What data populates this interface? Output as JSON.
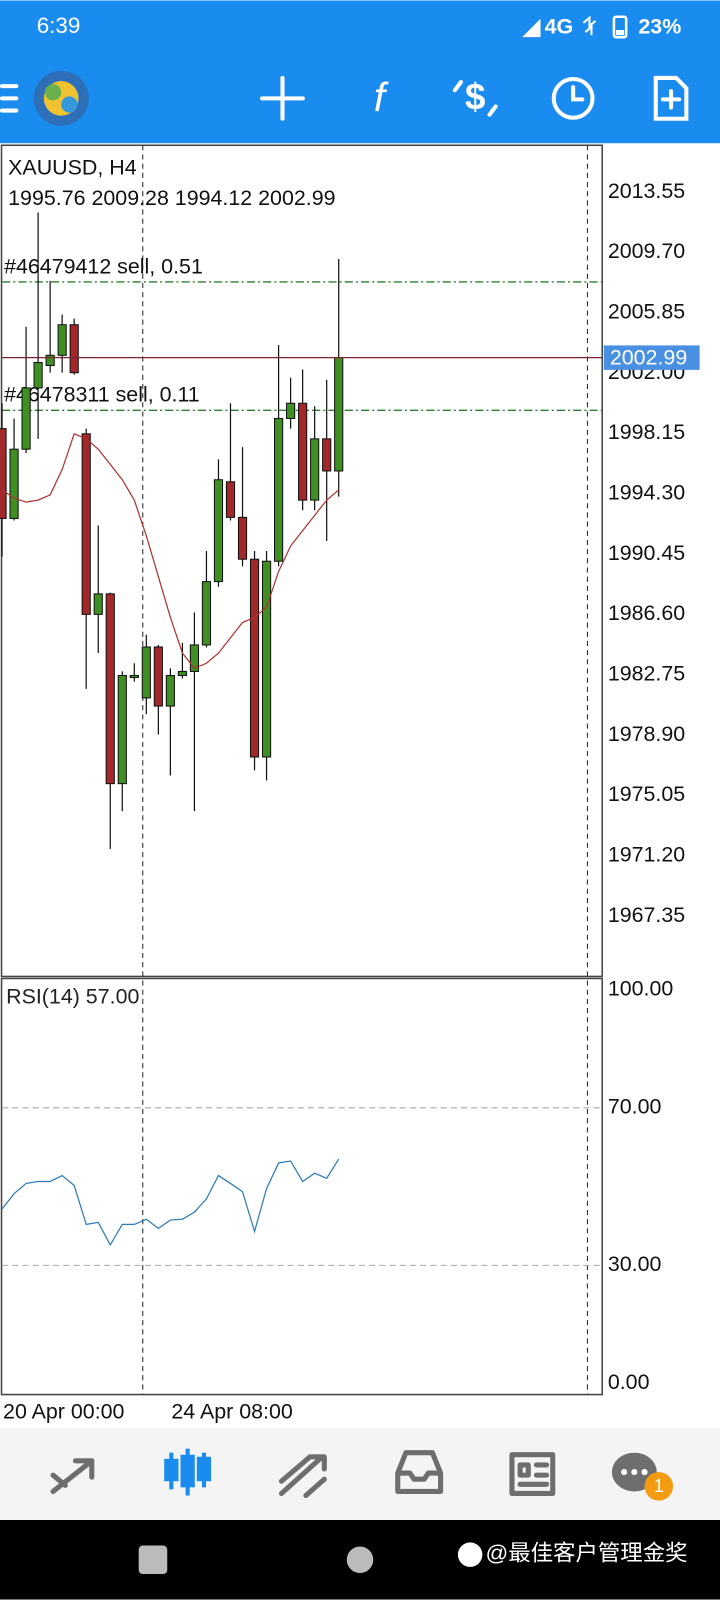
{
  "status_bar": {
    "time": "6:39",
    "network": "4G",
    "battery": "23%"
  },
  "chart_data": [
    {
      "type": "candlestick",
      "title": "XAUUSD, H4",
      "subtitle": "1995.76 2009.28 1994.12 2002.99",
      "categories": [
        "20 Apr 00:00",
        null,
        null,
        null,
        null,
        null,
        null,
        null,
        null,
        null,
        null,
        null,
        null,
        null,
        "24 Apr 08:00",
        null,
        null,
        null,
        null,
        null,
        null,
        null,
        null,
        null,
        null,
        null,
        null,
        null,
        null
      ],
      "open": [
        1998.46,
        1992.73,
        1997.15,
        2001.06,
        2002.49,
        2003.14,
        2005.09,
        1998.13,
        1986.61,
        1987.92,
        1975.81,
        1982.58,
        1981.28,
        1984.53,
        1980.76,
        1982.71,
        1982.97,
        1984.66,
        1988.7,
        1995.07,
        1992.8,
        1990.13,
        1977.51,
        1990.0,
        1999.11,
        2000.08,
        1993.9,
        1997.81,
        1995.76
      ],
      "high": [
        2000.08,
        1999.11,
        2004.96,
        2012.25,
        2007.89,
        2005.74,
        2005.48,
        1998.46,
        1992.28,
        1988.0,
        1982.97,
        1983.49,
        1985.31,
        1984.66,
        1983.17,
        1984.79,
        1986.74,
        1990.65,
        1996.5,
        2000.08,
        1997.28,
        1990.65,
        1990.65,
        2003.79,
        2001.71,
        2002.23,
        1999.89,
        2001.58,
        2009.28
      ],
      "low": [
        1990.3,
        1992.6,
        1996.9,
        1997.81,
        2002.03,
        2002.03,
        2001.9,
        1981.86,
        1984.14,
        1971.65,
        1974.06,
        1982.32,
        1980.24,
        1978.94,
        1976.33,
        1982.52,
        1974.06,
        1984.5,
        1988.37,
        1992.6,
        1989.67,
        1976.66,
        1976.01,
        1989.67,
        1998.46,
        1993.25,
        1993.25,
        1991.3,
        1994.12
      ],
      "close": [
        1992.73,
        1997.15,
        2001.06,
        2002.68,
        2003.14,
        2005.09,
        2002.03,
        1986.61,
        1987.92,
        1975.81,
        1982.71,
        1982.71,
        1984.53,
        1980.76,
        1982.71,
        1982.97,
        1984.66,
        1988.7,
        1995.2,
        1992.8,
        1990.13,
        1977.51,
        1990.0,
        1999.11,
        2000.08,
        1993.9,
        1997.81,
        1995.76,
        2002.99
      ],
      "up_color": "#3f8f23",
      "down_color": "#a3282a",
      "series": [
        {
          "color": "#b03030",
          "values": [
            1994.55,
            1994.03,
            1993.77,
            1993.9,
            1994.23,
            1995.85,
            1998.13,
            1997.81,
            1997.15,
            1996.18,
            1995.2,
            1993.9,
            1991.62,
            1989.02,
            1986.42,
            1984.14,
            1983.17,
            1983.49,
            1984.14,
            1985.12,
            1986.09,
            1986.42,
            1987.07,
            1989.35,
            1990.97,
            1991.95,
            1992.93,
            1993.9,
            1994.55
          ]
        }
      ],
      "ylim": [
        1963.51,
        2016.54
      ],
      "yticks": [
        2013.55,
        {
          "value": 2009.7,
          "label": "2009.70"
        },
        2005.85,
        {
          "value": 2002,
          "label": "2002.00"
        },
        1998.15,
        {
          "value": 1994.3,
          "label": "1994.30"
        },
        1990.45,
        {
          "value": 1986.6,
          "label": "1986.60"
        },
        1982.75,
        {
          "value": 1978.9,
          "label": "1978.90"
        },
        1975.05,
        {
          "value": 1971.2,
          "label": "1971.20"
        },
        1967.35
      ],
      "bid": 2002.99,
      "bid_color": "#4a90e2",
      "orders": [
        {
          "value": 2007.82,
          "label": "#46479412 sell, 0.51",
          "color": "#2e7d32"
        },
        {
          "value": 1999.63,
          "label": "#46478311 sell, 0.11",
          "color": "#2e7d32"
        }
      ]
    },
    {
      "type": "line",
      "title": "RSI(14) 57.00",
      "color": "#2a7ab8",
      "values": [
        44.3,
        48.2,
        50.8,
        51.3,
        51.3,
        52.8,
        50.3,
        40.4,
        40.9,
        35.2,
        40.4,
        40.4,
        41.7,
        39.4,
        41.5,
        41.7,
        43.5,
        46.9,
        52.8,
        50.8,
        48.7,
        38.6,
        49.5,
        56.0,
        56.5,
        51.3,
        53.4,
        52.1,
        57.0
      ],
      "ylim": [
        -2.8,
        103.1
      ],
      "yticks": [
        {
          "value": 100,
          "label": "100.00"
        },
        {
          "value": 70,
          "label": "70.00"
        },
        {
          "value": 30,
          "label": "30.00"
        },
        {
          "value": 0,
          "label": "0.00"
        }
      ],
      "levels": [
        30,
        70
      ]
    }
  ],
  "bottom_nav": {
    "badge": "1"
  },
  "watermark": "@最佳客户管理金奖"
}
